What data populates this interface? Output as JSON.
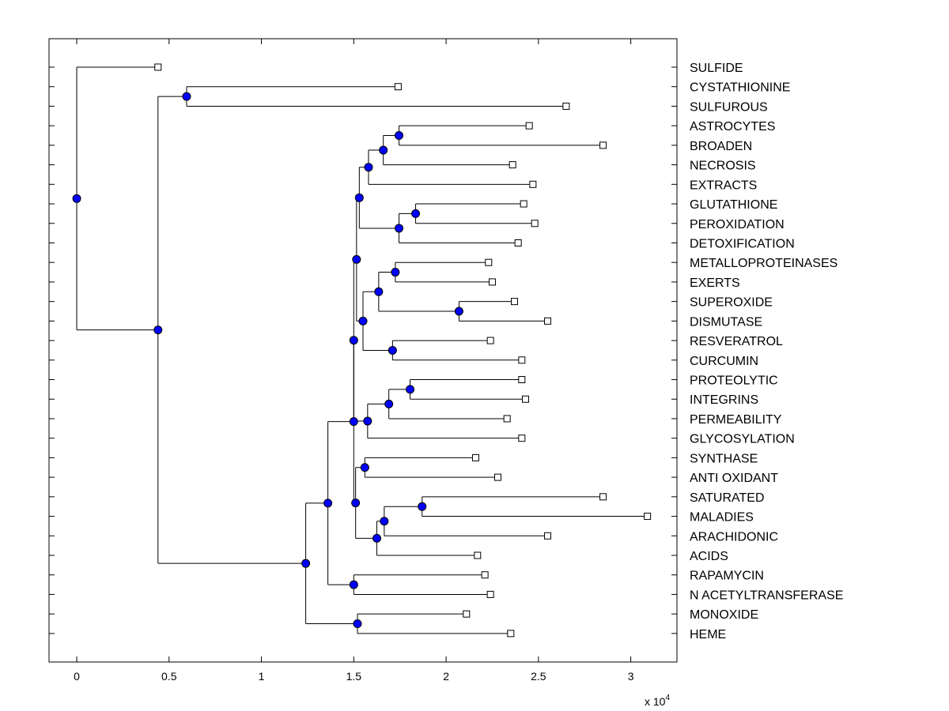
{
  "chart_data": {
    "type": "dendrogram",
    "orientation": "horizontal",
    "x_tick_labels": [
      "0",
      "0.5",
      "1",
      "1.5",
      "2",
      "2.5",
      "3"
    ],
    "x_ticks": [
      0,
      0.5,
      1,
      1.5,
      2,
      2.5,
      3
    ],
    "x_multiplier_label": "x 10",
    "x_multiplier_exponent": "4",
    "xlim": [
      -0.15,
      3.25
    ],
    "colors": {
      "node": "#0000ff",
      "line": "#000000",
      "leaf_marker_fill": "#ffffff"
    },
    "leaves": [
      {
        "label": "SULFIDE",
        "value": 0.44
      },
      {
        "label": "CYSTATHIONINE",
        "value": 1.74
      },
      {
        "label": "SULFUROUS",
        "value": 2.65
      },
      {
        "label": "ASTROCYTES",
        "value": 2.45
      },
      {
        "label": "BROADEN",
        "value": 2.85
      },
      {
        "label": "NECROSIS",
        "value": 2.36
      },
      {
        "label": "EXTRACTS",
        "value": 2.47
      },
      {
        "label": "GLUTATHIONE",
        "value": 2.42
      },
      {
        "label": "PEROXIDATION",
        "value": 2.48
      },
      {
        "label": "DETOXIFICATION",
        "value": 2.39
      },
      {
        "label": "METALLOPROTEINASES",
        "value": 2.23
      },
      {
        "label": "EXERTS",
        "value": 2.25
      },
      {
        "label": "SUPEROXIDE",
        "value": 2.37
      },
      {
        "label": "DISMUTASE",
        "value": 2.55
      },
      {
        "label": "RESVERATROL",
        "value": 2.24
      },
      {
        "label": "CURCUMIN",
        "value": 2.41
      },
      {
        "label": "PROTEOLYTIC",
        "value": 2.41
      },
      {
        "label": "INTEGRINS",
        "value": 2.43
      },
      {
        "label": "PERMEABILITY",
        "value": 2.33
      },
      {
        "label": "GLYCOSYLATION",
        "value": 2.41
      },
      {
        "label": "SYNTHASE",
        "value": 2.16
      },
      {
        "label": "ANTI OXIDANT",
        "value": 2.28
      },
      {
        "label": "SATURATED",
        "value": 2.85
      },
      {
        "label": "MALADIES",
        "value": 3.09
      },
      {
        "label": "ARACHIDONIC",
        "value": 2.55
      },
      {
        "label": "ACIDS",
        "value": 2.17
      },
      {
        "label": "RAPAMYCIN",
        "value": 2.21
      },
      {
        "label": "N ACETYLTRANSFERASE",
        "value": 2.24
      },
      {
        "label": "MONOXIDE",
        "value": 2.11
      },
      {
        "label": "HEME",
        "value": 2.35
      }
    ],
    "nodes": [
      {
        "id": "n1",
        "value": 0.595,
        "children": [
          1,
          2
        ]
      },
      {
        "id": "n2",
        "value": 1.745,
        "children": [
          3,
          4
        ]
      },
      {
        "id": "n3",
        "value": 1.66,
        "children": [
          "n2",
          5
        ]
      },
      {
        "id": "n4",
        "value": 1.58,
        "children": [
          "n3",
          6
        ]
      },
      {
        "id": "n5",
        "value": 1.835,
        "children": [
          7,
          8
        ]
      },
      {
        "id": "n6",
        "value": 1.745,
        "children": [
          "n5",
          9
        ]
      },
      {
        "id": "n7",
        "value": 1.53,
        "children": [
          "n4",
          "n6"
        ]
      },
      {
        "id": "n8",
        "value": 1.725,
        "children": [
          10,
          11
        ]
      },
      {
        "id": "n9",
        "value": 2.07,
        "children": [
          12,
          13
        ]
      },
      {
        "id": "n10",
        "value": 1.635,
        "children": [
          "n8",
          "n9"
        ]
      },
      {
        "id": "n11",
        "value": 1.71,
        "children": [
          14,
          15
        ]
      },
      {
        "id": "n12",
        "value": 1.55,
        "children": [
          "n10",
          "n11"
        ]
      },
      {
        "id": "n13",
        "value": 1.515,
        "children": [
          "n7",
          "n12"
        ]
      },
      {
        "id": "n14",
        "value": 1.805,
        "children": [
          16,
          17
        ]
      },
      {
        "id": "n15",
        "value": 1.69,
        "children": [
          "n14",
          18
        ]
      },
      {
        "id": "n16",
        "value": 1.575,
        "children": [
          "n15",
          19
        ]
      },
      {
        "id": "n17",
        "value": 1.5,
        "children": [
          "n13",
          "n16"
        ]
      },
      {
        "id": "n18",
        "value": 1.56,
        "children": [
          20,
          21
        ]
      },
      {
        "id": "n19",
        "value": 1.87,
        "children": [
          22,
          23
        ]
      },
      {
        "id": "n20",
        "value": 1.665,
        "children": [
          "n19",
          24
        ]
      },
      {
        "id": "n21",
        "value": 1.625,
        "children": [
          "n20",
          25
        ]
      },
      {
        "id": "n22",
        "value": 1.51,
        "children": [
          "n18",
          "n21"
        ]
      },
      {
        "id": "n23",
        "value": 1.5,
        "children": [
          "n17",
          "n22"
        ]
      },
      {
        "id": "n24",
        "value": 1.5,
        "children": [
          26,
          27
        ]
      },
      {
        "id": "n25",
        "value": 1.36,
        "children": [
          "n23",
          "n24"
        ]
      },
      {
        "id": "n26",
        "value": 1.52,
        "children": [
          28,
          29
        ]
      },
      {
        "id": "n27",
        "value": 1.24,
        "children": [
          "n25",
          "n26"
        ]
      },
      {
        "id": "n28",
        "value": 0.44,
        "children": [
          "n1",
          "n27"
        ]
      },
      {
        "id": "n29",
        "value": 0.0,
        "children": [
          0,
          "n28"
        ]
      }
    ]
  }
}
